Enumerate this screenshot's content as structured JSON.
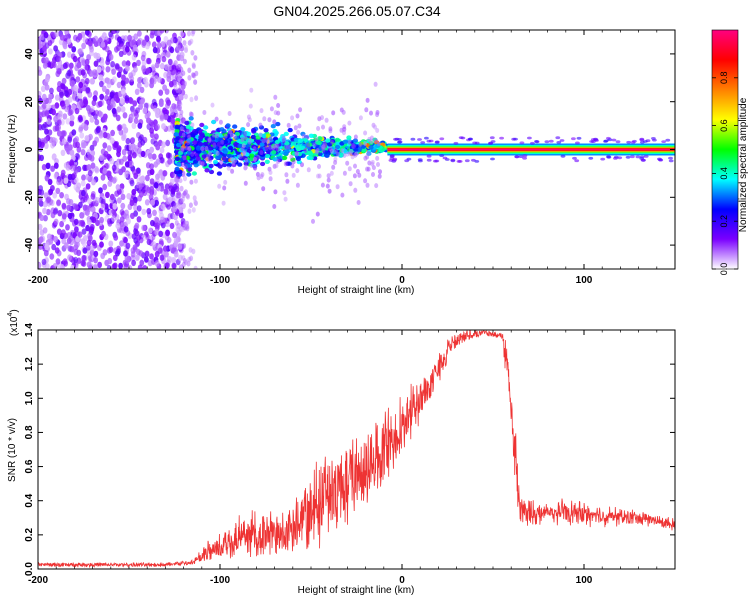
{
  "title": "GN04.2025.266.05.07.C34",
  "chart_data": [
    {
      "type": "heatmap",
      "panel": "spectrogram",
      "xlabel": "Height of straight line (km)",
      "ylabel": "Frequency (Hz)",
      "xlim": [
        -200,
        150
      ],
      "ylim": [
        -50,
        50
      ],
      "xticks": [
        -200,
        -100,
        0,
        100
      ],
      "yticks": [
        -40,
        -20,
        0,
        20,
        40
      ],
      "noise_region_x": [
        -200,
        -115
      ],
      "signal_region_start_x": -125,
      "locked_region_start_x": -8,
      "locked_frequency": 0,
      "colorbar": {
        "label": "Normalized spectral amplitude",
        "range": [
          0.0,
          1.0
        ],
        "ticks": [
          "0.0",
          "0.2",
          "0.4",
          "0.6",
          "0.8"
        ],
        "tick_values": [
          0.0,
          0.2,
          0.4,
          0.6,
          0.8
        ],
        "colors": [
          "#ffffff",
          "#7a00ff",
          "#0000ff",
          "#00ffff",
          "#00ff00",
          "#ffff00",
          "#ff8000",
          "#ff0000",
          "#ff0080"
        ]
      }
    },
    {
      "type": "line",
      "panel": "snr",
      "xlabel": "Height of straight line (km)",
      "ylabel": "SNR (10 * v/v)",
      "exponent_label": "(x10",
      "exponent_power": "4",
      "exponent_close": ")",
      "xlim": [
        -200,
        150
      ],
      "ylim": [
        0,
        1.4
      ],
      "xticks": [
        -200,
        -100,
        0,
        100
      ],
      "yticks": [
        0.0,
        0.2,
        0.4,
        0.6,
        0.8,
        1.0,
        1.2,
        1.4
      ],
      "ytick_labels": [
        "0.0",
        "0.2",
        "0.4",
        "0.6",
        "0.8",
        "1.0",
        "1.2",
        "1.4"
      ],
      "line_color": "#ee3333",
      "envelope_x": [
        -200,
        -130,
        -115,
        -105,
        -95,
        -85,
        -75,
        -60,
        -45,
        -35,
        -25,
        -15,
        -5,
        5,
        15,
        25,
        35,
        45,
        55,
        58,
        60,
        62,
        65,
        75,
        90,
        110,
        130,
        150
      ],
      "envelope_lo": [
        0.01,
        0.01,
        0.02,
        0.05,
        0.06,
        0.07,
        0.07,
        0.08,
        0.12,
        0.2,
        0.3,
        0.4,
        0.55,
        0.75,
        0.95,
        1.2,
        1.3,
        1.35,
        1.33,
        1.0,
        0.85,
        0.4,
        0.22,
        0.25,
        0.25,
        0.24,
        0.25,
        0.22
      ],
      "envelope_hi": [
        0.04,
        0.04,
        0.06,
        0.2,
        0.3,
        0.38,
        0.35,
        0.45,
        0.75,
        0.8,
        0.85,
        0.92,
        1.0,
        1.1,
        1.22,
        1.35,
        1.4,
        1.4,
        1.38,
        1.36,
        1.02,
        0.9,
        0.45,
        0.4,
        0.42,
        0.38,
        0.35,
        0.3
      ]
    }
  ]
}
